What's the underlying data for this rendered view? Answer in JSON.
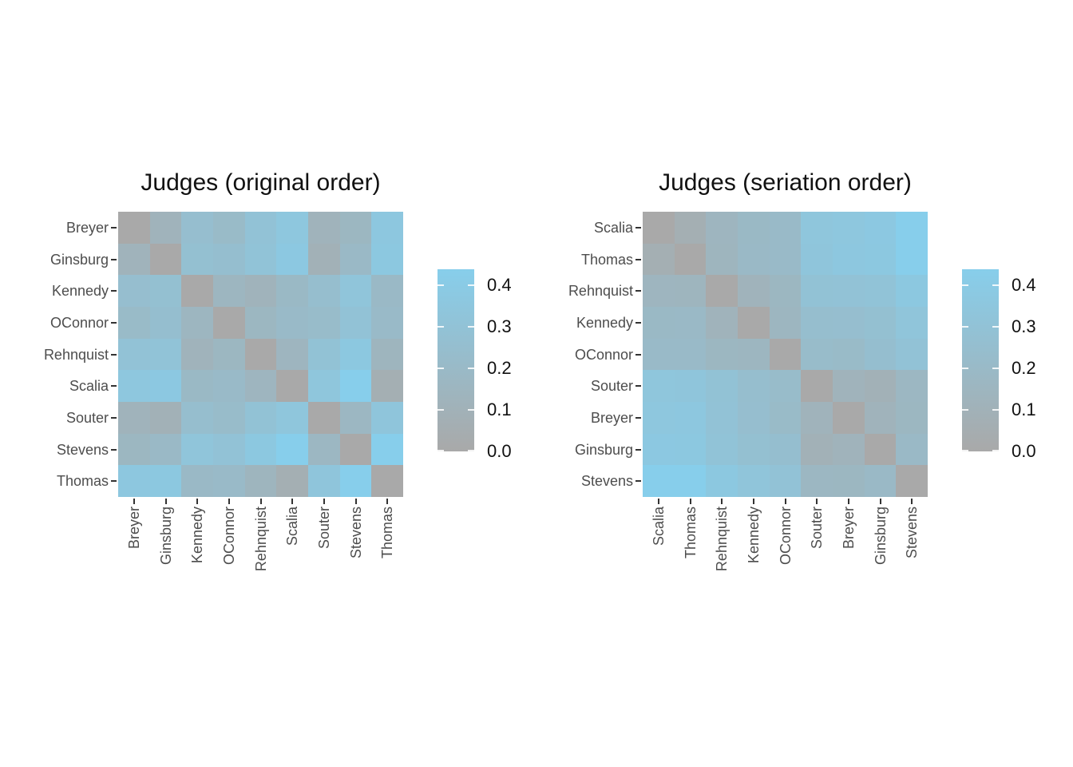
{
  "figure": {
    "background": "#ffffff"
  },
  "chart_data": {
    "type": "heatmap",
    "description": "Two dissimilarity heatmaps of Supreme Court judges, before and after seriation",
    "labels": [
      "Breyer",
      "Ginsburg",
      "Kennedy",
      "OConnor",
      "Rehnquist",
      "Scalia",
      "Souter",
      "Stevens",
      "Thomas"
    ],
    "matrix": [
      [
        0.0,
        0.12,
        0.25,
        0.209,
        0.299,
        0.353,
        0.118,
        0.162,
        0.359
      ],
      [
        0.12,
        0.0,
        0.267,
        0.252,
        0.308,
        0.37,
        0.096,
        0.193,
        0.368
      ],
      [
        0.25,
        0.267,
        0.0,
        0.156,
        0.122,
        0.188,
        0.248,
        0.327,
        0.193
      ],
      [
        0.209,
        0.252,
        0.156,
        0.0,
        0.162,
        0.207,
        0.22,
        0.297,
        0.205
      ],
      [
        0.299,
        0.308,
        0.122,
        0.162,
        0.0,
        0.143,
        0.293,
        0.368,
        0.137
      ],
      [
        0.353,
        0.37,
        0.188,
        0.207,
        0.143,
        0.0,
        0.338,
        0.438,
        0.066
      ],
      [
        0.118,
        0.096,
        0.248,
        0.22,
        0.293,
        0.338,
        0.0,
        0.169,
        0.331
      ],
      [
        0.162,
        0.193,
        0.327,
        0.297,
        0.368,
        0.438,
        0.169,
        0.0,
        0.436
      ],
      [
        0.359,
        0.368,
        0.193,
        0.205,
        0.137,
        0.066,
        0.331,
        0.436,
        0.0
      ]
    ],
    "panels": [
      {
        "title": "Judges (original order)",
        "order": [
          "Breyer",
          "Ginsburg",
          "Kennedy",
          "OConnor",
          "Rehnquist",
          "Scalia",
          "Souter",
          "Stevens",
          "Thomas"
        ]
      },
      {
        "title": "Judges (seriation order)",
        "order": [
          "Scalia",
          "Thomas",
          "Rehnquist",
          "Kennedy",
          "OConnor",
          "Souter",
          "Breyer",
          "Ginsburg",
          "Stevens"
        ]
      }
    ],
    "colorscale": {
      "min": 0.0,
      "max": 0.4385,
      "low_color": "#A9A9A9",
      "high_color": "#87CEEB"
    },
    "legend": {
      "tick_labels": [
        "0.0",
        "0.1",
        "0.2",
        "0.3",
        "0.4"
      ],
      "tick_values": [
        0.0,
        0.1,
        0.2,
        0.3,
        0.4
      ],
      "position": "right"
    },
    "axis_text_color": "#4d4d4d",
    "grid": false
  }
}
